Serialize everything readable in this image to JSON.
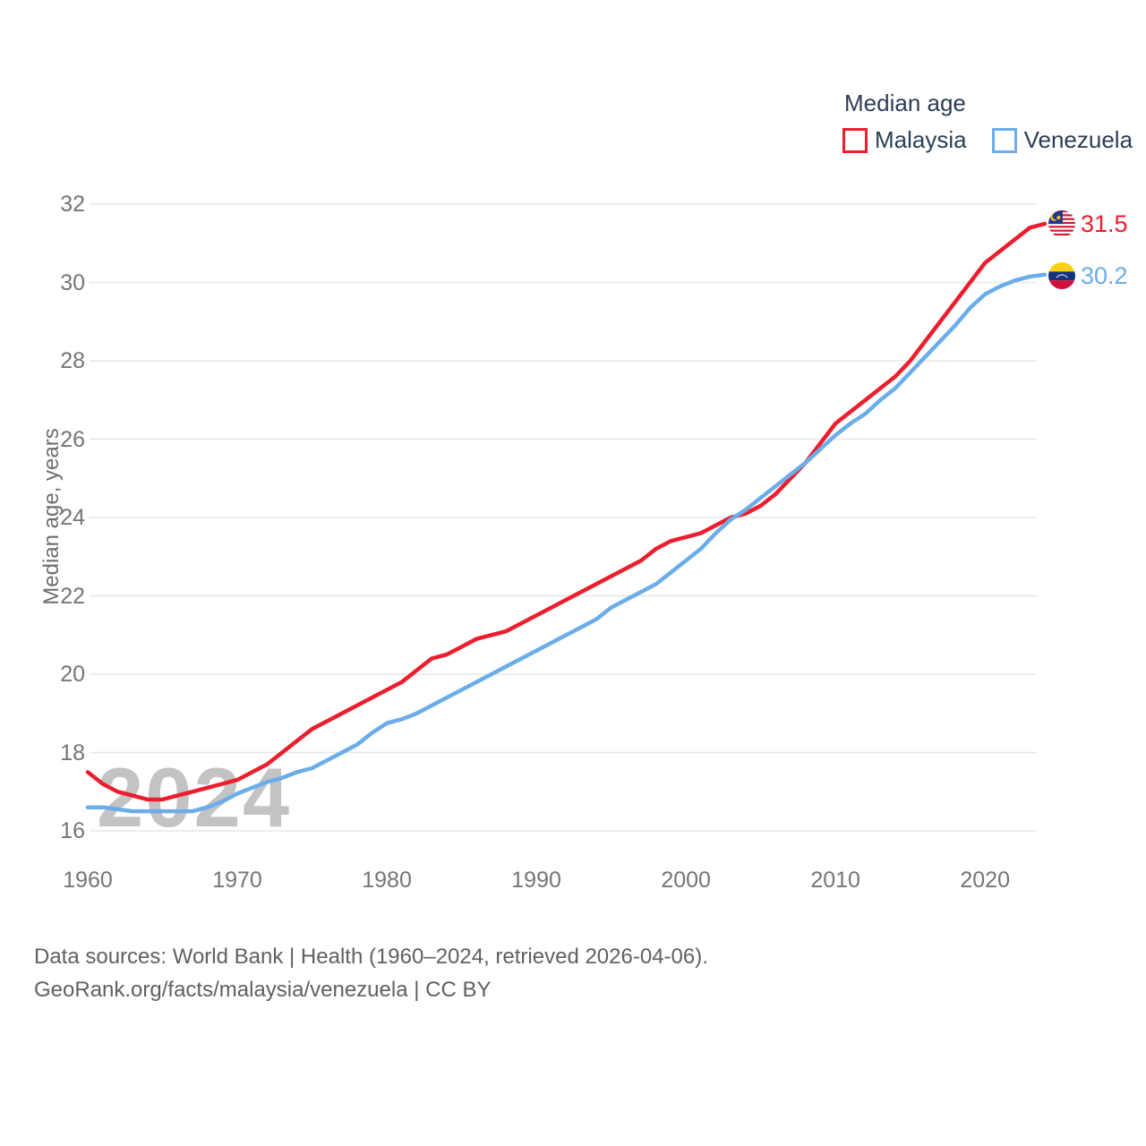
{
  "legend": {
    "title": "Median age",
    "series": [
      {
        "label": "Malaysia",
        "color": "#ec1e2d"
      },
      {
        "label": "Venezuela",
        "color": "#6badea"
      }
    ]
  },
  "end_labels": [
    {
      "value": "31.5",
      "color": "#ec1e2d",
      "flag": "malaysia-flag-icon"
    },
    {
      "value": "30.2",
      "color": "#6badea",
      "flag": "venezuela-flag-icon"
    }
  ],
  "watermark": "2024",
  "y_axis": {
    "title": "Median age, years",
    "ticks": [
      16,
      18,
      20,
      22,
      24,
      26,
      28,
      30,
      32
    ]
  },
  "x_axis": {
    "ticks": [
      1960,
      1970,
      1980,
      1990,
      2000,
      2010,
      2020
    ]
  },
  "footer": {
    "line1": "Data sources: World Bank | Health (1960–2024, retrieved 2026-04-06).",
    "line2": "GeoRank.org/facts/malaysia/venezuela | CC BY"
  },
  "chart_data": {
    "type": "line",
    "title": "Median age",
    "ylabel": "Median age, years",
    "xlim": [
      1960,
      2024
    ],
    "ylim": [
      16,
      32
    ],
    "grid": "horizontal",
    "legend_position": "top-right",
    "x": [
      1960,
      1961,
      1962,
      1963,
      1964,
      1965,
      1966,
      1967,
      1968,
      1969,
      1970,
      1971,
      1972,
      1973,
      1974,
      1975,
      1976,
      1977,
      1978,
      1979,
      1980,
      1981,
      1982,
      1983,
      1984,
      1985,
      1986,
      1987,
      1988,
      1989,
      1990,
      1991,
      1992,
      1993,
      1994,
      1995,
      1996,
      1997,
      1998,
      1999,
      2000,
      2001,
      2002,
      2003,
      2004,
      2005,
      2006,
      2007,
      2008,
      2009,
      2010,
      2011,
      2012,
      2013,
      2014,
      2015,
      2016,
      2017,
      2018,
      2019,
      2020,
      2021,
      2022,
      2023,
      2024
    ],
    "series": [
      {
        "name": "Malaysia",
        "color": "#ec1e2d",
        "end_value": 31.5,
        "values": [
          17.5,
          17.2,
          17.0,
          16.9,
          16.8,
          16.8,
          16.9,
          17.0,
          17.1,
          17.2,
          17.3,
          17.5,
          17.7,
          18.0,
          18.3,
          18.6,
          18.8,
          19.0,
          19.2,
          19.4,
          19.6,
          19.8,
          20.1,
          20.4,
          20.5,
          20.7,
          20.9,
          21.0,
          21.1,
          21.3,
          21.5,
          21.7,
          21.9,
          22.1,
          22.3,
          22.5,
          22.7,
          22.9,
          23.2,
          23.4,
          23.5,
          23.6,
          23.8,
          24.0,
          24.1,
          24.3,
          24.6,
          25.0,
          25.4,
          25.9,
          26.4,
          26.7,
          27.0,
          27.3,
          27.6,
          28.0,
          28.5,
          29.0,
          29.5,
          30.0,
          30.5,
          30.8,
          31.1,
          31.4,
          31.5
        ]
      },
      {
        "name": "Venezuela",
        "color": "#6badea",
        "end_value": 30.2,
        "values": [
          16.6,
          16.6,
          16.55,
          16.5,
          16.5,
          16.5,
          16.5,
          16.5,
          16.6,
          16.75,
          16.95,
          17.1,
          17.25,
          17.35,
          17.5,
          17.6,
          17.8,
          18.0,
          18.2,
          18.5,
          18.75,
          18.85,
          19.0,
          19.2,
          19.4,
          19.6,
          19.8,
          20.0,
          20.2,
          20.4,
          20.6,
          20.8,
          21.0,
          21.2,
          21.4,
          21.7,
          21.9,
          22.1,
          22.3,
          22.6,
          22.9,
          23.2,
          23.6,
          23.95,
          24.2,
          24.5,
          24.8,
          25.1,
          25.4,
          25.75,
          26.1,
          26.4,
          26.65,
          27.0,
          27.3,
          27.7,
          28.1,
          28.5,
          28.9,
          29.35,
          29.7,
          29.9,
          30.05,
          30.15,
          30.2
        ]
      }
    ]
  }
}
